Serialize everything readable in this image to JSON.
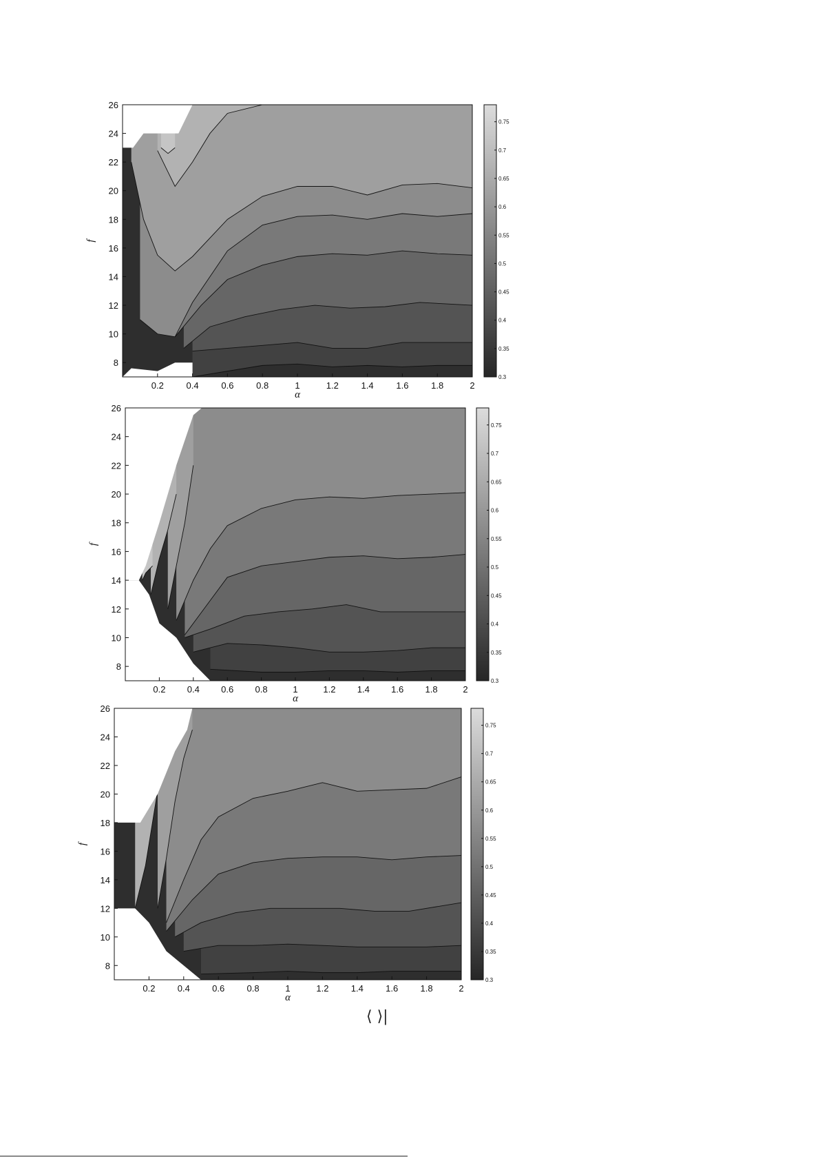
{
  "chart_data": [
    {
      "type": "heatmap",
      "subtype": "filled-contour",
      "xlabel": "α",
      "ylabel": "f",
      "xlim": [
        0,
        2
      ],
      "ylim": [
        7,
        26
      ],
      "xticks": [
        "0.2",
        "0.4",
        "0.6",
        "0.8",
        "1",
        "1.2",
        "1.4",
        "1.6",
        "1.8",
        "2"
      ],
      "yticks": [
        "8",
        "10",
        "12",
        "14",
        "16",
        "18",
        "20",
        "22",
        "24",
        "26"
      ],
      "colorbar": {
        "range": [
          0.3,
          0.78
        ],
        "ticks": [
          "0.3",
          "0.35",
          "0.4",
          "0.45",
          "0.5",
          "0.55",
          "0.6",
          "0.65",
          "0.7",
          "0.75"
        ],
        "colormap": "gray"
      },
      "levels": [
        0.35,
        0.4,
        0.45,
        0.5,
        0.55,
        0.6,
        0.65,
        0.7
      ],
      "contours": [
        {
          "level": 0.35,
          "x": [
            0.4,
            0.8,
            1.0,
            1.2,
            1.4,
            1.6,
            1.8,
            2.0
          ],
          "f": [
            7.0,
            7.8,
            7.9,
            7.7,
            7.8,
            7.7,
            7.8,
            7.8
          ]
        },
        {
          "level": 0.4,
          "x": [
            0.4,
            0.6,
            0.8,
            1.0,
            1.2,
            1.4,
            1.6,
            1.8,
            2.0
          ],
          "f": [
            8.8,
            9.0,
            9.2,
            9.4,
            9.0,
            9.0,
            9.4,
            9.4,
            9.4
          ]
        },
        {
          "level": 0.45,
          "x": [
            0.35,
            0.5,
            0.7,
            0.9,
            1.1,
            1.3,
            1.5,
            1.7,
            2.0
          ],
          "f": [
            9.0,
            10.5,
            11.2,
            11.7,
            12.0,
            11.8,
            11.9,
            12.2,
            12.0
          ]
        },
        {
          "level": 0.5,
          "x": [
            0.3,
            0.45,
            0.6,
            0.8,
            1.0,
            1.2,
            1.4,
            1.6,
            1.8,
            2.0
          ],
          "f": [
            9.8,
            12.0,
            13.8,
            14.8,
            15.4,
            15.6,
            15.5,
            15.8,
            15.6,
            15.5
          ]
        },
        {
          "level": 0.55,
          "x": [
            0.1,
            0.2,
            0.3,
            0.4,
            0.6,
            0.8,
            1.0,
            1.2,
            1.4,
            1.6,
            1.8,
            2.0
          ],
          "f": [
            11.0,
            10.0,
            9.8,
            12.2,
            15.8,
            17.6,
            18.2,
            18.3,
            18.0,
            18.4,
            18.2,
            18.4
          ]
        },
        {
          "level": 0.6,
          "x": [
            0.05,
            0.12,
            0.2,
            0.3,
            0.4,
            0.6,
            0.8,
            1.0,
            1.2,
            1.4,
            1.6,
            1.8,
            2.0
          ],
          "f": [
            22.0,
            18.0,
            15.5,
            14.4,
            15.4,
            18.0,
            19.6,
            20.3,
            20.3,
            19.7,
            20.4,
            20.5,
            20.2
          ]
        },
        {
          "level": 0.65,
          "x": [
            0.2,
            0.3,
            0.4,
            0.5,
            0.6,
            0.8
          ],
          "f": [
            22.8,
            20.3,
            22.0,
            24.0,
            25.4,
            26.0
          ]
        },
        {
          "level": 0.7,
          "x": [
            0.22,
            0.26,
            0.3
          ],
          "f": [
            23.0,
            22.6,
            23.0
          ]
        }
      ],
      "undefined_region": "upper-left corner (α < 0.4, f > 23) and lower-left corner (α < 0.4, f < 8)"
    },
    {
      "type": "heatmap",
      "subtype": "filled-contour",
      "xlabel": "α",
      "ylabel": "f",
      "xlim": [
        0,
        2
      ],
      "ylim": [
        7,
        26
      ],
      "xticks": [
        "0.2",
        "0.4",
        "0.6",
        "0.8",
        "1",
        "1.2",
        "1.4",
        "1.6",
        "1.8",
        "2"
      ],
      "yticks": [
        "8",
        "10",
        "12",
        "14",
        "16",
        "18",
        "20",
        "22",
        "24",
        "26"
      ],
      "colorbar": {
        "range": [
          0.3,
          0.78
        ],
        "ticks": [
          "0.3",
          "0.35",
          "0.4",
          "0.45",
          "0.5",
          "0.55",
          "0.6",
          "0.65",
          "0.7",
          "0.75"
        ],
        "colormap": "gray"
      },
      "levels": [
        0.35,
        0.4,
        0.45,
        0.5,
        0.55,
        0.6,
        0.65,
        0.7
      ],
      "contours": [
        {
          "level": 0.35,
          "x": [
            0.5,
            0.8,
            1.0,
            1.2,
            1.4,
            1.6,
            1.8,
            2.0
          ],
          "f": [
            7.8,
            7.6,
            7.6,
            7.7,
            7.7,
            7.6,
            7.7,
            7.7
          ]
        },
        {
          "level": 0.4,
          "x": [
            0.4,
            0.6,
            0.8,
            1.0,
            1.2,
            1.4,
            1.6,
            1.8,
            2.0
          ],
          "f": [
            9.0,
            9.6,
            9.5,
            9.3,
            9.0,
            9.0,
            9.1,
            9.3,
            9.3
          ]
        },
        {
          "level": 0.45,
          "x": [
            0.35,
            0.5,
            0.7,
            0.9,
            1.1,
            1.3,
            1.5,
            1.7,
            2.0
          ],
          "f": [
            10.0,
            10.6,
            11.5,
            11.8,
            12.0,
            12.3,
            11.8,
            11.8,
            11.8
          ]
        },
        {
          "level": 0.5,
          "x": [
            0.35,
            0.5,
            0.6,
            0.8,
            1.0,
            1.2,
            1.4,
            1.6,
            1.8,
            2.0
          ],
          "f": [
            10.2,
            12.6,
            14.2,
            15.0,
            15.3,
            15.6,
            15.7,
            15.5,
            15.6,
            15.8
          ]
        },
        {
          "level": 0.55,
          "x": [
            0.3,
            0.4,
            0.5,
            0.6,
            0.8,
            1.0,
            1.2,
            1.4,
            1.6,
            1.8,
            2.0
          ],
          "f": [
            11.2,
            14.0,
            16.2,
            17.8,
            19.0,
            19.6,
            19.8,
            19.7,
            19.9,
            20.0,
            20.1
          ]
        },
        {
          "level": 0.6,
          "x": [
            0.25,
            0.3,
            0.35,
            0.4
          ],
          "f": [
            12.0,
            15.0,
            18.0,
            22.0
          ]
        },
        {
          "level": 0.65,
          "x": [
            0.15,
            0.2,
            0.25,
            0.3
          ],
          "f": [
            13.0,
            15.5,
            17.5,
            20.0
          ]
        },
        {
          "level": 0.7,
          "x": [
            0.1,
            0.12,
            0.16
          ],
          "f": [
            14.0,
            14.5,
            15.0
          ]
        }
      ],
      "undefined_region": "left boundary running from (0.08, 14) to (0.4, 25.5) and below from (0.2, 11) to (0.5, 7)"
    },
    {
      "type": "heatmap",
      "subtype": "filled-contour",
      "xlabel": "α",
      "ylabel": "f",
      "xlim": [
        0,
        2
      ],
      "ylim": [
        7,
        26
      ],
      "xticks": [
        "0.2",
        "0.4",
        "0.6",
        "0.8",
        "1",
        "1.2",
        "1.4",
        "1.6",
        "1.8",
        "2"
      ],
      "yticks": [
        "8",
        "10",
        "12",
        "14",
        "16",
        "18",
        "20",
        "22",
        "24",
        "26"
      ],
      "colorbar": {
        "range": [
          0.3,
          0.78
        ],
        "ticks": [
          "0.3",
          "0.35",
          "0.4",
          "0.45",
          "0.5",
          "0.55",
          "0.6",
          "0.65",
          "0.7",
          "0.75"
        ],
        "colormap": "gray"
      },
      "levels": [
        0.35,
        0.4,
        0.45,
        0.5,
        0.55,
        0.6,
        0.65,
        0.7
      ],
      "contours": [
        {
          "level": 0.35,
          "x": [
            0.5,
            0.8,
            1.0,
            1.2,
            1.4,
            1.6,
            1.8,
            2.0
          ],
          "f": [
            7.4,
            7.5,
            7.6,
            7.5,
            7.5,
            7.6,
            7.6,
            7.6
          ]
        },
        {
          "level": 0.4,
          "x": [
            0.4,
            0.6,
            0.8,
            1.0,
            1.2,
            1.4,
            1.6,
            1.8,
            2.0
          ],
          "f": [
            9.0,
            9.4,
            9.4,
            9.5,
            9.4,
            9.3,
            9.3,
            9.3,
            9.4
          ]
        },
        {
          "level": 0.45,
          "x": [
            0.35,
            0.5,
            0.7,
            0.9,
            1.1,
            1.3,
            1.5,
            1.7,
            2.0
          ],
          "f": [
            10.0,
            11.0,
            11.7,
            12.0,
            12.0,
            12.0,
            11.8,
            11.8,
            12.4
          ]
        },
        {
          "level": 0.5,
          "x": [
            0.3,
            0.45,
            0.6,
            0.8,
            1.0,
            1.2,
            1.4,
            1.6,
            1.8,
            2.0
          ],
          "f": [
            10.4,
            12.6,
            14.4,
            15.2,
            15.5,
            15.6,
            15.6,
            15.4,
            15.6,
            15.7
          ]
        },
        {
          "level": 0.55,
          "x": [
            0.3,
            0.4,
            0.5,
            0.6,
            0.8,
            1.0,
            1.2,
            1.4,
            1.6,
            1.8,
            2.0
          ],
          "f": [
            11.0,
            14.0,
            16.8,
            18.4,
            19.7,
            20.2,
            20.8,
            20.2,
            20.3,
            20.4,
            21.2
          ]
        },
        {
          "level": 0.6,
          "x": [
            0.25,
            0.3,
            0.35,
            0.4,
            0.45
          ],
          "f": [
            12.0,
            15.5,
            19.5,
            22.5,
            24.5
          ]
        },
        {
          "level": 0.65,
          "x": [
            0.12,
            0.18,
            0.22,
            0.26
          ],
          "f": [
            12.0,
            15.0,
            18.0,
            21.0
          ]
        }
      ],
      "undefined_region": "left strip x < 0.12 outside 12 ≤ f ≤ 18, upper-left wedge above the α≈0.45 boundary, lower-left wedge below (0.3, 9)–(0.5, 7)"
    }
  ],
  "footer_text": "⟨      ⟩|"
}
